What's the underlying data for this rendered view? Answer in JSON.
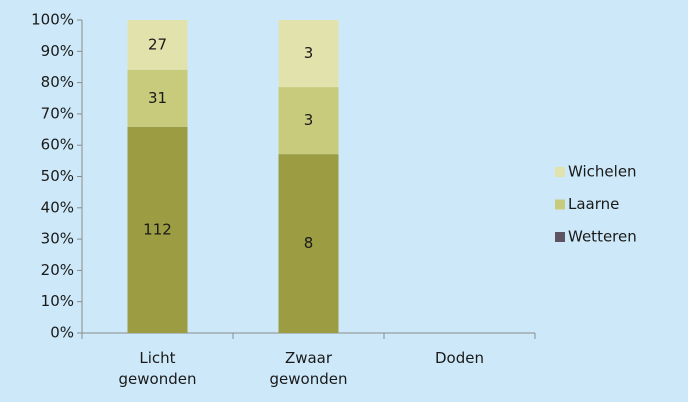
{
  "chart_data": {
    "type": "bar",
    "stacking": "percent",
    "categories": [
      [
        "Licht",
        "gewonden"
      ],
      [
        "Zwaar",
        "gewonden"
      ],
      [
        "Doden"
      ]
    ],
    "series": [
      {
        "name": "Wetteren",
        "color": "#9c9c42",
        "legend_color": "#5e5360",
        "values": [
          112,
          8,
          null
        ]
      },
      {
        "name": "Laarne",
        "color": "#c8ca7c",
        "values": [
          31,
          3,
          null
        ]
      },
      {
        "name": "Wichelen",
        "color": "#e2e2ac",
        "values": [
          27,
          3,
          null
        ]
      }
    ],
    "ylim": [
      0,
      100
    ],
    "yticks": [
      {
        "value": 0,
        "label": "0%"
      },
      {
        "value": 10,
        "label": "10%"
      },
      {
        "value": 20,
        "label": "20%"
      },
      {
        "value": 30,
        "label": "30%"
      },
      {
        "value": 40,
        "label": "40%"
      },
      {
        "value": 50,
        "label": "50%"
      },
      {
        "value": 60,
        "label": "60%"
      },
      {
        "value": 70,
        "label": "70%"
      },
      {
        "value": 80,
        "label": "80%"
      },
      {
        "value": 90,
        "label": "90%"
      },
      {
        "value": 100,
        "label": "100%"
      }
    ],
    "legend": "right"
  }
}
